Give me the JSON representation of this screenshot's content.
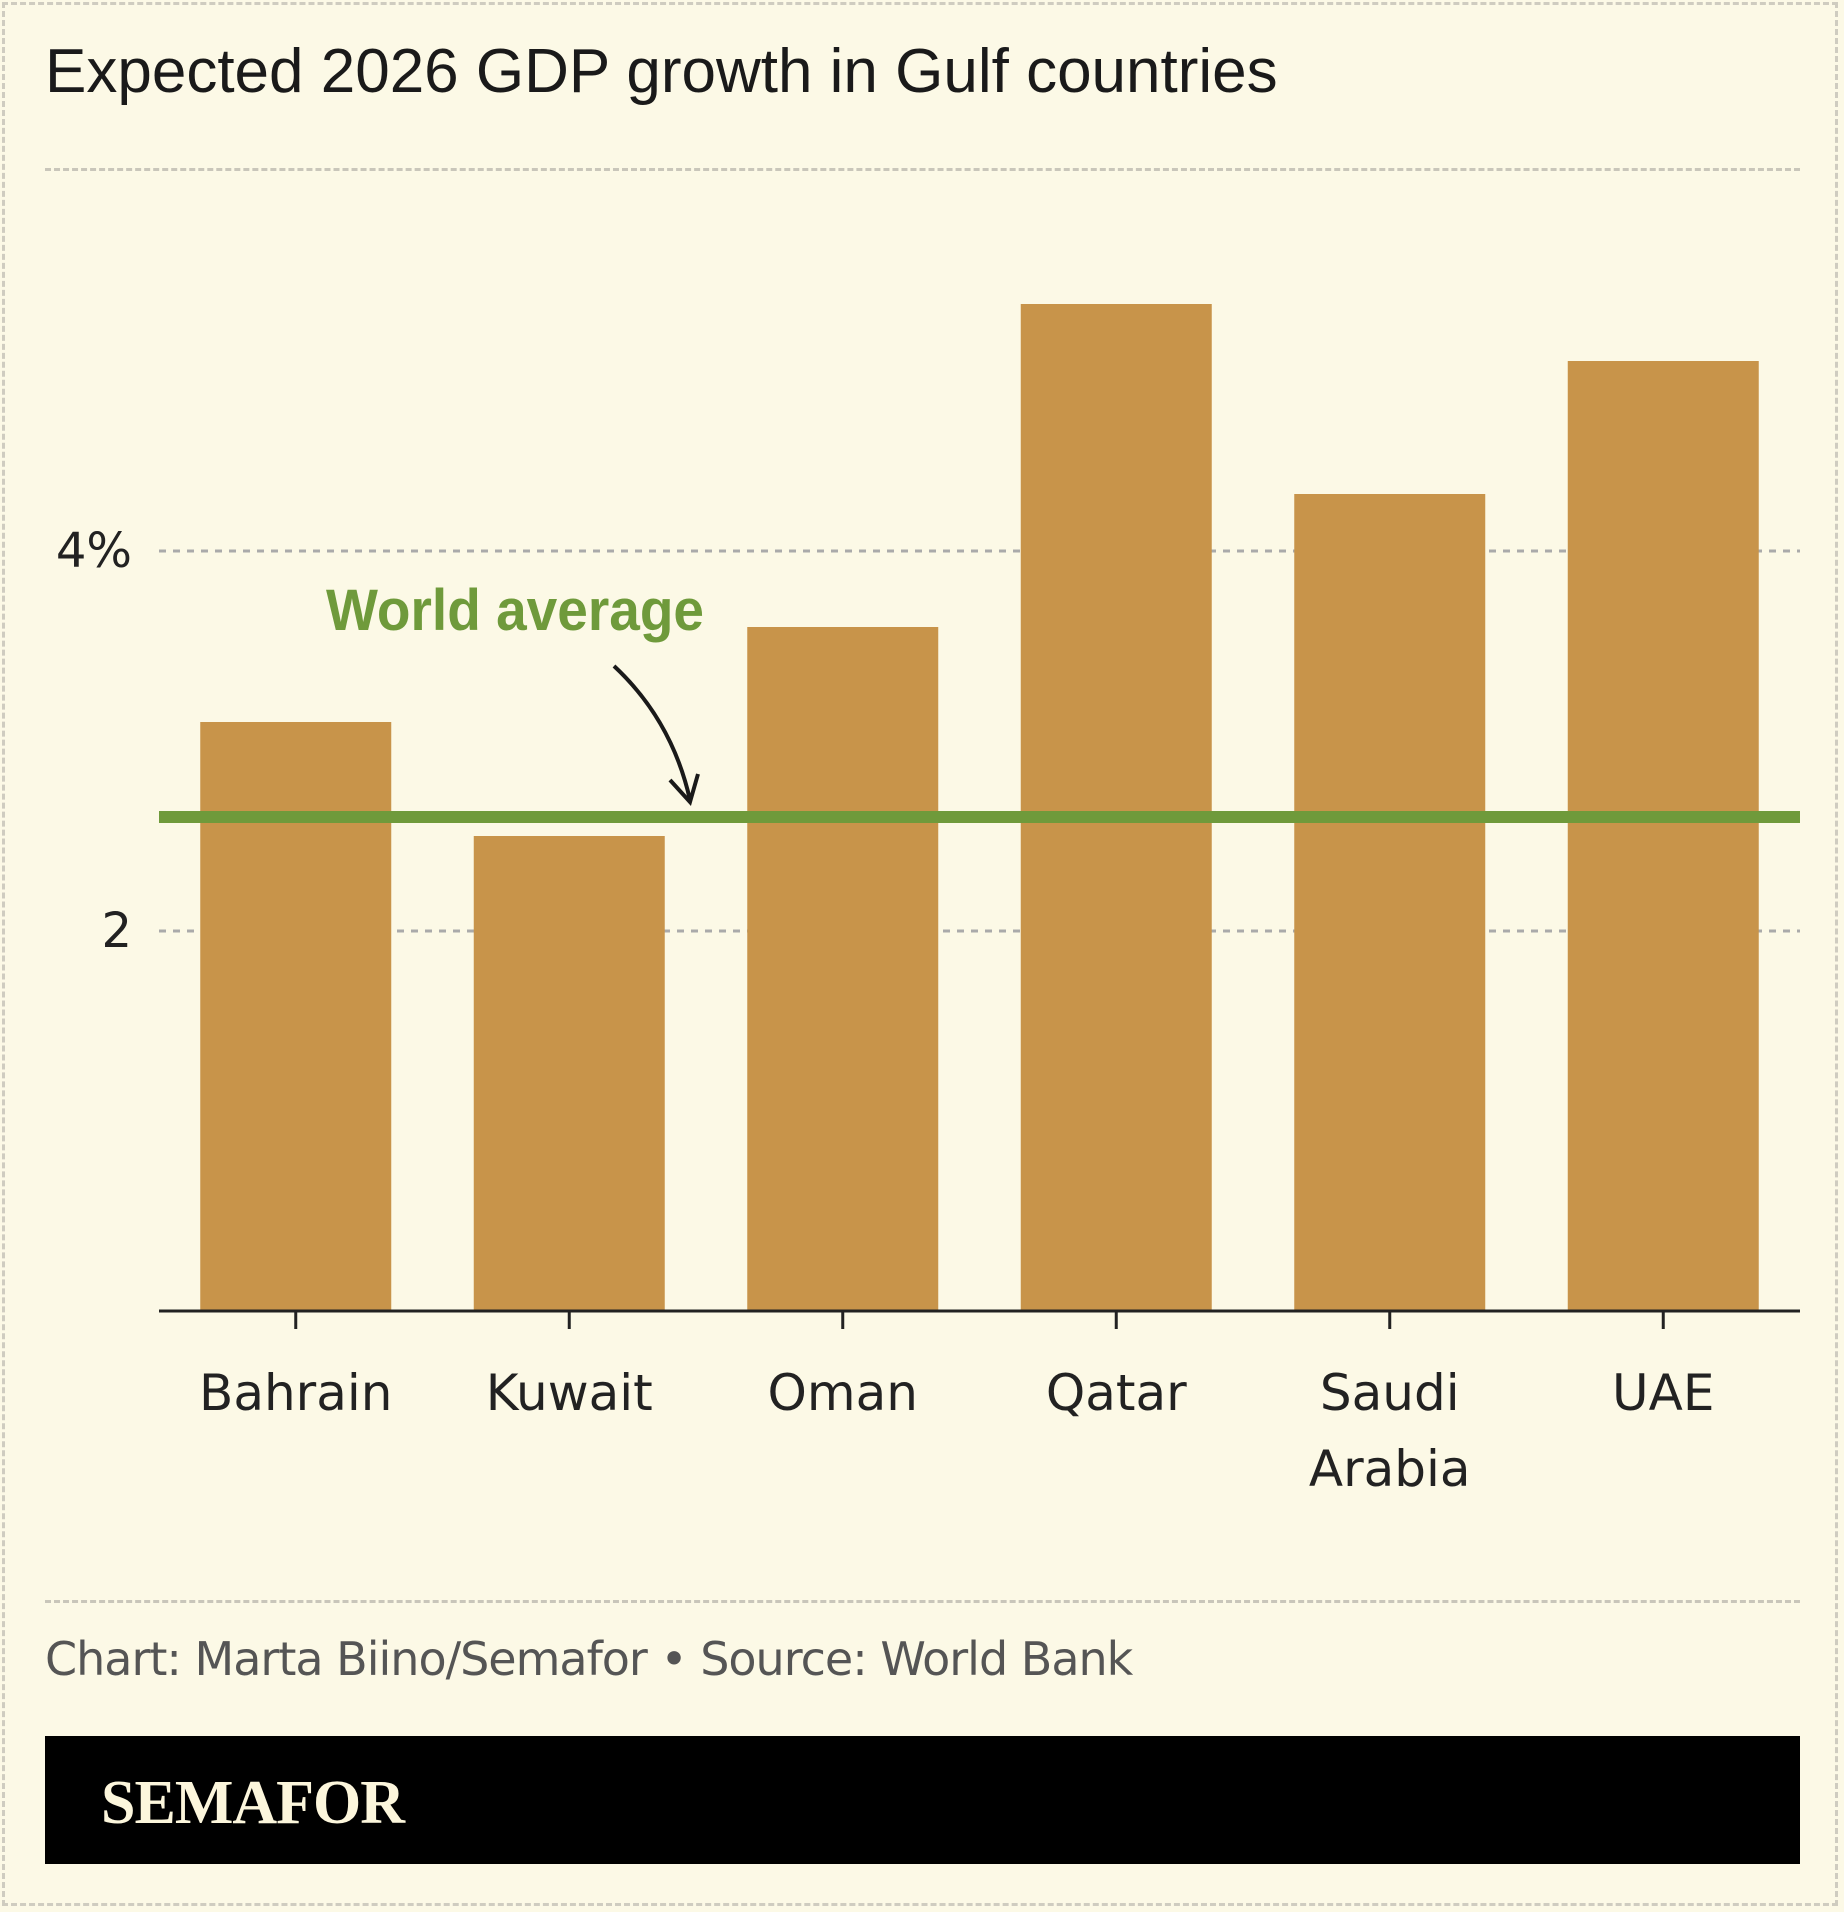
{
  "title": "Expected 2026 GDP growth in Gulf countries",
  "credit": "Chart: Marta Biino/Semafor • Source: World Bank",
  "logo": "SEMAFOR",
  "chart_data": {
    "type": "bar",
    "title": "Expected 2026 GDP growth in Gulf countries",
    "categories": [
      "Bahrain",
      "Kuwait",
      "Oman",
      "Qatar",
      "Saudi Arabia",
      "UAE"
    ],
    "category_lines": [
      [
        "Bahrain"
      ],
      [
        "Kuwait"
      ],
      [
        "Oman"
      ],
      [
        "Qatar"
      ],
      [
        "Saudi",
        "Arabia"
      ],
      [
        "UAE"
      ]
    ],
    "values": [
      3.1,
      2.5,
      3.6,
      5.3,
      4.3,
      5.0
    ],
    "yticks": [
      {
        "value": 2,
        "label": "2"
      },
      {
        "value": 4,
        "label": "4%"
      }
    ],
    "ylim": [
      0,
      5.8
    ],
    "grid": true,
    "reference_line": {
      "label": "World average",
      "value": 2.6,
      "color": "#6f9a3b"
    },
    "bar_color": "#c8944a"
  }
}
